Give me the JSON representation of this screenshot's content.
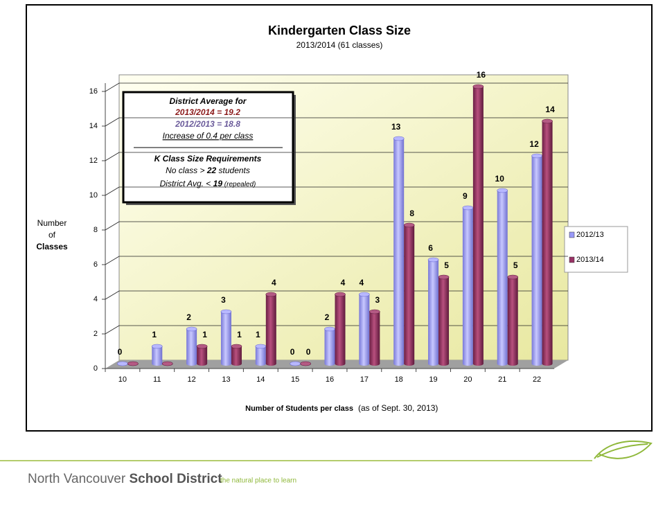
{
  "chart_data": {
    "type": "bar",
    "title": "Kindergarten Class Size",
    "subtitle": "2013/2014 (61 classes)",
    "ylabel": [
      "Number",
      "of",
      "Classes"
    ],
    "xlabel": "Number of Students per class",
    "xlabel_note": "(as of Sept. 30, 2013)",
    "categories": [
      "10",
      "11",
      "12",
      "13",
      "14",
      "15",
      "16",
      "17",
      "18",
      "19",
      "20",
      "21",
      "22"
    ],
    "series": [
      {
        "name": "2012/13",
        "color": "#9a9af8",
        "values": [
          0,
          1,
          2,
          3,
          1,
          0,
          2,
          4,
          13,
          6,
          9,
          10,
          12
        ],
        "value_labels": [
          "0",
          "1",
          "2",
          "3",
          "1",
          "0",
          "2",
          "4",
          "13",
          "6",
          "9",
          "10",
          "12"
        ]
      },
      {
        "name": "2013/14",
        "color": "#993366",
        "values": [
          0,
          0,
          1,
          1,
          4,
          0,
          4,
          3,
          8,
          5,
          16,
          5,
          14
        ],
        "value_labels": [
          null,
          null,
          "1",
          "1",
          "4",
          "0",
          "4",
          "3",
          "8",
          "5",
          "16",
          "5",
          "14"
        ]
      }
    ],
    "ylim": [
      0,
      16
    ],
    "yticks": [
      0,
      2,
      4,
      6,
      8,
      10,
      12,
      14,
      16
    ],
    "grid": true,
    "legend": "right",
    "annotation": {
      "heading": "District Average for",
      "line1": "2013/2014 = 19.2",
      "line2": "2012/2013 = 18.8",
      "line3": "Increase of 0.4 per class",
      "heading2": "K Class Size Requirements",
      "req1": [
        "No class > ",
        "22",
        " students"
      ],
      "req2": [
        "District Avg. < ",
        "19",
        " (repealed)"
      ]
    }
  },
  "footer": {
    "name_light": "North Vancouver",
    "name_bold": "School District",
    "tagline": "the natural place to learn"
  }
}
